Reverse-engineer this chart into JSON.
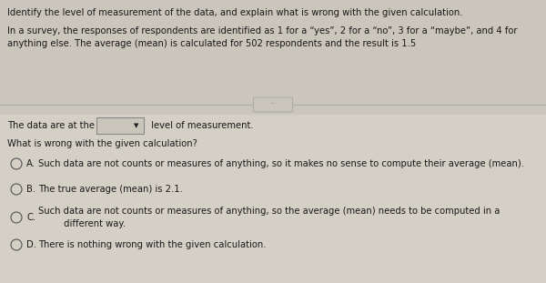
{
  "bg_color": "#ccc8be",
  "top_section_bg": "#ccc8be",
  "bottom_section_bg": "#d4d0c9",
  "title_text": "Identify the level of measurement of the data, and explain what is wrong with the given calculation.",
  "paragraph_text": "In a survey, the responses of respondents are identified as 1 for a “yes”, 2 for a “no”, 3 for a “maybe”, and 4 for\nanything else. The average (mean) is calculated for 502 respondents and the result is 1.5",
  "dropdown_label": "The data are at the",
  "dropdown_suffix": " level of measurement.",
  "question_text": "What is wrong with the given calculation?",
  "options": [
    {
      "letter": "A.",
      "text": "Such data are not counts or measures of anything, so it makes no sense to compute their average (mean)."
    },
    {
      "letter": "B.",
      "text": "The true average (mean) is 2.1."
    },
    {
      "letter": "C.",
      "text": "Such data are not counts or measures of anything, so the average (mean) needs to be computed in a\n         different way."
    },
    {
      "letter": "D.",
      "text": "There is nothing wrong with the given calculation."
    }
  ],
  "font_size_title": 7.2,
  "font_size_body": 7.2,
  "font_size_options": 7.2,
  "text_color": "#1a1a1a",
  "divider_color": "#aaaaaa",
  "ellipsis_color": "#777777",
  "dropdown_bg": "#ccc8be",
  "dropdown_border": "#888888"
}
